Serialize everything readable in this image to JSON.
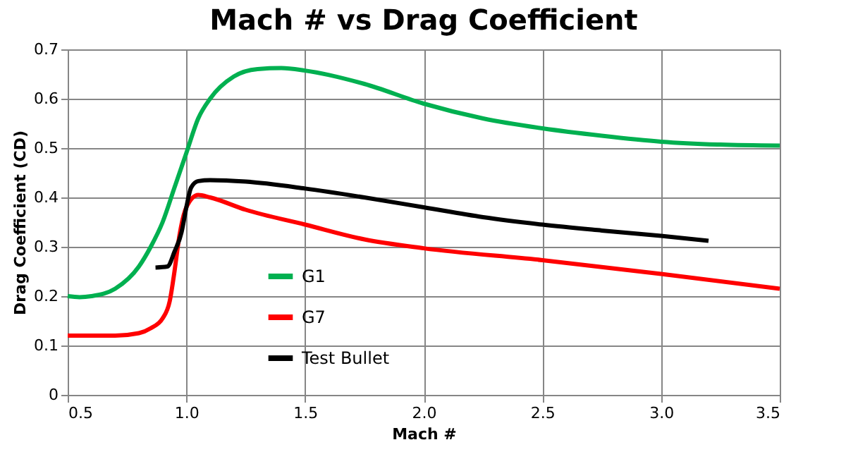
{
  "chart_data": {
    "type": "line",
    "title": "Mach # vs Drag Coefficient",
    "xlabel": "Mach #",
    "ylabel": "Drag Coefficient (CD)",
    "xlim": [
      0.5,
      3.5
    ],
    "xticks": [
      {
        "value": 0.5,
        "label": "0.5"
      },
      {
        "value": 1,
        "label": "1.0"
      },
      {
        "value": 1.5,
        "label": "1.5"
      },
      {
        "value": 2,
        "label": "2.0"
      },
      {
        "value": 2.5,
        "label": "2.5"
      },
      {
        "value": 3,
        "label": "3.0"
      },
      {
        "value": 3.5,
        "label": "3.5"
      }
    ],
    "ylim": [
      0,
      0.7
    ],
    "yticks": [
      0,
      0.1,
      0.2,
      0.3,
      0.4,
      0.5,
      0.6,
      0.7
    ],
    "grid": true,
    "legend": "bottom left",
    "series": [
      {
        "name": "G1",
        "color": "#00b050",
        "x": [
          0.5,
          0.55,
          0.6,
          0.7,
          0.8,
          0.85,
          0.9,
          0.95,
          1.0,
          1.05,
          1.1,
          1.2,
          1.3,
          1.4,
          1.5,
          1.75,
          2.0,
          2.25,
          2.5,
          2.75,
          3.0,
          3.25,
          3.5
        ],
        "values": [
          0.2,
          0.198,
          0.2,
          0.215,
          0.26,
          0.3,
          0.35,
          0.42,
          0.49,
          0.56,
          0.6,
          0.645,
          0.66,
          0.662,
          0.657,
          0.63,
          0.59,
          0.56,
          0.54,
          0.525,
          0.513,
          0.507,
          0.505
        ]
      },
      {
        "name": "G7",
        "color": "#ff0000",
        "x": [
          0.5,
          0.7,
          0.8,
          0.85,
          0.9,
          0.93,
          0.95,
          0.97,
          1.0,
          1.05,
          1.1,
          1.25,
          1.5,
          1.75,
          2.0,
          2.5,
          3.0,
          3.5
        ],
        "values": [
          0.12,
          0.12,
          0.125,
          0.135,
          0.155,
          0.19,
          0.25,
          0.32,
          0.38,
          0.405,
          0.4,
          0.375,
          0.345,
          0.315,
          0.297,
          0.273,
          0.245,
          0.215
        ]
      },
      {
        "name": "Test Bullet",
        "color": "#000000",
        "x": [
          0.87,
          0.92,
          0.95,
          0.98,
          1.0,
          1.02,
          1.05,
          1.1,
          1.25,
          1.5,
          1.75,
          2.0,
          2.25,
          2.5,
          2.75,
          3.0,
          3.2
        ],
        "values": [
          0.258,
          0.26,
          0.29,
          0.33,
          0.38,
          0.42,
          0.433,
          0.435,
          0.432,
          0.418,
          0.4,
          0.38,
          0.36,
          0.345,
          0.333,
          0.322,
          0.312
        ]
      }
    ]
  }
}
